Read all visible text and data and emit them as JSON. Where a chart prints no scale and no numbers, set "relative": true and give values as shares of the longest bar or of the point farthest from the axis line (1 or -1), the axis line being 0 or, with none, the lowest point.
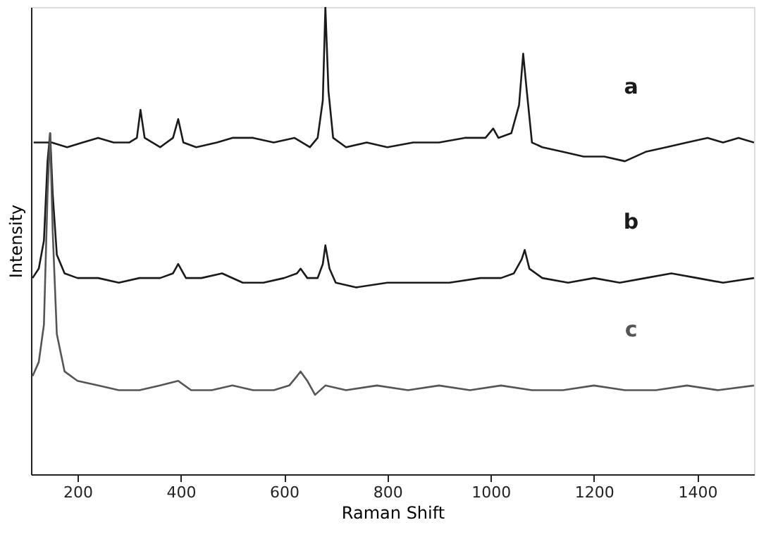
{
  "chart_data": {
    "type": "line",
    "xlabel": "Raman Shift",
    "ylabel": "Intensity",
    "relative": true,
    "xlim": [
      110,
      1510
    ],
    "xticks": [
      200,
      400,
      600,
      800,
      1000,
      1200,
      1400
    ],
    "line_style": "solid",
    "marker": "none",
    "series": [
      {
        "name": "a",
        "color": "#1a1a1a",
        "x": [
          115,
          150,
          180,
          210,
          240,
          270,
          300,
          315,
          322,
          330,
          360,
          385,
          395,
          405,
          430,
          470,
          500,
          540,
          580,
          620,
          650,
          665,
          675,
          680,
          686,
          695,
          720,
          760,
          800,
          850,
          900,
          950,
          990,
          1005,
          1015,
          1040,
          1055,
          1063,
          1070,
          1080,
          1100,
          1140,
          1180,
          1220,
          1260,
          1300,
          1340,
          1380,
          1420,
          1450,
          1480,
          1510
        ],
        "values": [
          0.71,
          0.71,
          0.7,
          0.71,
          0.72,
          0.71,
          0.71,
          0.72,
          0.78,
          0.72,
          0.7,
          0.72,
          0.76,
          0.71,
          0.7,
          0.71,
          0.72,
          0.72,
          0.71,
          0.72,
          0.7,
          0.72,
          0.8,
          1.0,
          0.82,
          0.72,
          0.7,
          0.71,
          0.7,
          0.71,
          0.71,
          0.72,
          0.72,
          0.74,
          0.72,
          0.73,
          0.79,
          0.9,
          0.82,
          0.71,
          0.7,
          0.69,
          0.68,
          0.68,
          0.67,
          0.69,
          0.7,
          0.71,
          0.72,
          0.71,
          0.72,
          0.71
        ]
      },
      {
        "name": "b",
        "color": "#1a1a1a",
        "x": [
          113,
          125,
          135,
          142,
          147,
          152,
          160,
          175,
          200,
          240,
          280,
          320,
          360,
          385,
          395,
          410,
          440,
          480,
          520,
          560,
          600,
          625,
          632,
          645,
          665,
          675,
          680,
          688,
          700,
          740,
          800,
          860,
          920,
          980,
          1020,
          1045,
          1060,
          1066,
          1075,
          1100,
          1150,
          1200,
          1250,
          1300,
          1350,
          1400,
          1450,
          1510
        ],
        "values": [
          0.42,
          0.44,
          0.5,
          0.67,
          0.73,
          0.6,
          0.47,
          0.43,
          0.42,
          0.42,
          0.41,
          0.42,
          0.42,
          0.43,
          0.45,
          0.42,
          0.42,
          0.43,
          0.41,
          0.41,
          0.42,
          0.43,
          0.44,
          0.42,
          0.42,
          0.45,
          0.49,
          0.44,
          0.41,
          0.4,
          0.41,
          0.41,
          0.41,
          0.42,
          0.42,
          0.43,
          0.46,
          0.48,
          0.44,
          0.42,
          0.41,
          0.42,
          0.41,
          0.42,
          0.43,
          0.42,
          0.41,
          0.42
        ]
      },
      {
        "name": "c",
        "color": "#555555",
        "x": [
          113,
          125,
          135,
          142,
          147,
          152,
          160,
          175,
          200,
          240,
          280,
          320,
          360,
          395,
          420,
          460,
          500,
          540,
          580,
          610,
          625,
          632,
          645,
          660,
          680,
          720,
          780,
          840,
          900,
          960,
          1020,
          1080,
          1140,
          1200,
          1260,
          1320,
          1380,
          1440,
          1510
        ],
        "values": [
          0.21,
          0.24,
          0.32,
          0.6,
          0.73,
          0.52,
          0.3,
          0.22,
          0.2,
          0.19,
          0.18,
          0.18,
          0.19,
          0.2,
          0.18,
          0.18,
          0.19,
          0.18,
          0.18,
          0.19,
          0.21,
          0.22,
          0.2,
          0.17,
          0.19,
          0.18,
          0.19,
          0.18,
          0.19,
          0.18,
          0.19,
          0.18,
          0.18,
          0.19,
          0.18,
          0.18,
          0.19,
          0.18,
          0.19
        ]
      }
    ]
  }
}
